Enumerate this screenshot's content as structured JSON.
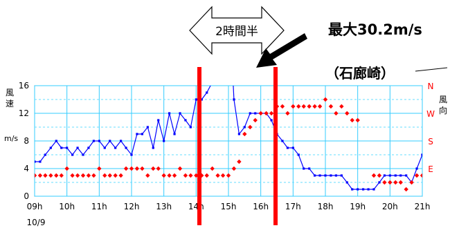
{
  "chart_data": {
    "type": "line",
    "station": "（石廊崎）",
    "left_axis": {
      "label_chars": [
        "風",
        "速"
      ],
      "unit": "m/s",
      "ylim": [
        0,
        16
      ],
      "ticks": [
        "0",
        "4",
        "8",
        "12",
        "16"
      ]
    },
    "right_axis": {
      "label_chars": [
        "風",
        "向"
      ],
      "direction_labels": [
        "N",
        "W",
        "S",
        "E"
      ]
    },
    "x_axis": {
      "ticks": [
        "09h",
        "10h",
        "11h",
        "12h",
        "13h",
        "14h",
        "15h",
        "16h",
        "17h",
        "18h",
        "19h",
        "20h",
        "21h"
      ],
      "date": "10/9",
      "range_hours": [
        9,
        21
      ]
    },
    "series": [
      {
        "kind": "wind-speed",
        "color": "#0000ff",
        "x": [
          9.0,
          9.17,
          9.33,
          9.5,
          9.67,
          9.83,
          10.0,
          10.17,
          10.33,
          10.5,
          10.67,
          10.83,
          11.0,
          11.17,
          11.33,
          11.5,
          11.67,
          11.83,
          12.0,
          12.17,
          12.33,
          12.5,
          12.67,
          12.83,
          13.0,
          13.17,
          13.33,
          13.5,
          13.67,
          13.83,
          14.0,
          14.17,
          14.33,
          14.5,
          14.67,
          14.83,
          15.0,
          15.17,
          15.33,
          15.5,
          15.67,
          15.83,
          16.0,
          16.17,
          16.33,
          16.5,
          16.67,
          16.83,
          17.0,
          17.17,
          17.33,
          17.5,
          17.67,
          17.83,
          18.0,
          18.17,
          18.33,
          18.5,
          18.67,
          18.83,
          19.0,
          19.17,
          19.33,
          19.5,
          19.67,
          19.83,
          20.0,
          20.17,
          20.33,
          20.5,
          20.67,
          20.83,
          21.0
        ],
        "y": [
          5,
          5,
          6,
          7,
          8,
          7,
          7,
          6,
          7,
          6,
          7,
          8,
          8,
          7,
          8,
          7,
          8,
          7,
          6,
          9,
          9,
          10,
          7,
          11,
          8,
          12,
          9,
          12,
          11,
          10,
          14,
          14,
          15,
          16.5,
          30.2,
          30.2,
          30.2,
          14,
          9,
          10,
          12,
          12,
          12,
          12,
          11,
          9,
          8,
          7,
          7,
          6,
          4,
          4,
          3,
          3,
          3,
          3,
          3,
          3,
          2,
          1,
          1,
          1,
          1,
          1,
          2,
          3,
          3,
          3,
          3,
          3,
          2,
          4,
          6
        ]
      },
      {
        "kind": "wind-direction",
        "color": "#ff0000",
        "x": [
          9.0,
          9.17,
          9.33,
          9.5,
          9.67,
          9.83,
          10.0,
          10.17,
          10.33,
          10.5,
          10.67,
          10.83,
          11.0,
          11.17,
          11.33,
          11.5,
          11.67,
          11.83,
          12.0,
          12.17,
          12.33,
          12.5,
          12.67,
          12.83,
          13.0,
          13.17,
          13.33,
          13.5,
          13.67,
          13.83,
          14.0,
          14.17,
          14.33,
          14.5,
          14.67,
          14.83,
          15.0,
          15.17,
          15.33,
          15.5,
          15.67,
          15.83,
          16.0,
          16.17,
          16.33,
          16.5,
          16.67,
          16.83,
          17.0,
          17.17,
          17.33,
          17.5,
          17.67,
          17.83,
          18.0,
          18.17,
          18.33,
          18.5,
          18.67,
          18.83,
          19.0,
          19.17,
          19.33,
          19.5,
          19.67,
          19.83,
          20.0,
          20.17,
          20.33,
          20.5,
          20.67,
          20.83,
          21.0
        ],
        "y": [
          3,
          3,
          3,
          3,
          3,
          3,
          4,
          3,
          3,
          3,
          3,
          3,
          4,
          3,
          3,
          3,
          3,
          4,
          4,
          4,
          4,
          3,
          4,
          4,
          3,
          3,
          3,
          4,
          3,
          3,
          3,
          3,
          3,
          4,
          3,
          3,
          3,
          4,
          5,
          9,
          10,
          11,
          12,
          12,
          12,
          13,
          13,
          12,
          13,
          13,
          13,
          13,
          13,
          13,
          14,
          13,
          12,
          13,
          12,
          11,
          11,
          null,
          null,
          3,
          3,
          2,
          2,
          2,
          2,
          1,
          2,
          3,
          3
        ]
      }
    ]
  },
  "annotations": {
    "duration": "2時間半",
    "max": "最大30.2m/s"
  }
}
